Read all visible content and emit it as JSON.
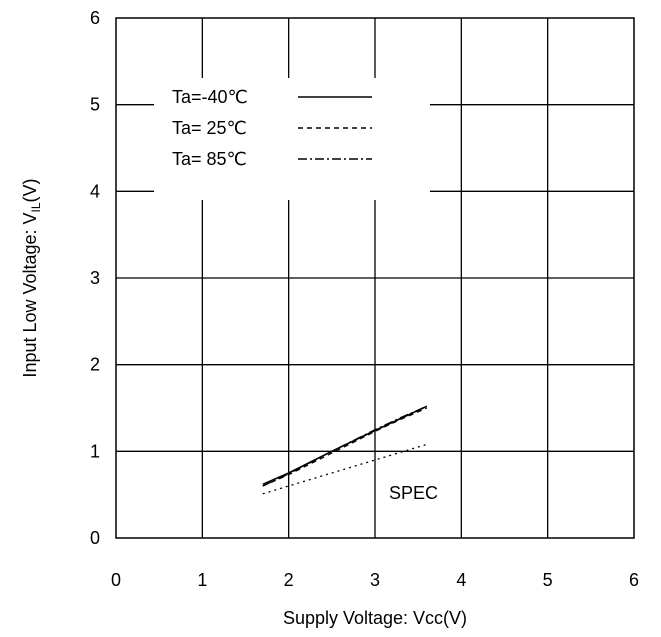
{
  "chart_data": {
    "type": "line",
    "title": "",
    "xlabel": "Supply Voltage: Vcc(V)",
    "ylabel_main": "Input Low Voltage: V",
    "ylabel_sub": "IL",
    "ylabel_unit": "(V)",
    "xlim": [
      0,
      6
    ],
    "ylim": [
      0,
      6
    ],
    "xticks": [
      "0",
      "1",
      "2",
      "3",
      "4",
      "5",
      "6"
    ],
    "yticks": [
      "0",
      "1",
      "2",
      "3",
      "4",
      "5",
      "6"
    ],
    "grid": true,
    "legend_position": "top-left",
    "series": [
      {
        "name": "Ta=-40℃",
        "style": "solid",
        "x": [
          1.7,
          2.0,
          2.5,
          3.0,
          3.3,
          3.6
        ],
        "y": [
          0.62,
          0.75,
          1.0,
          1.24,
          1.38,
          1.52
        ]
      },
      {
        "name": "Ta= 25℃",
        "style": "dashed",
        "x": [
          1.7,
          2.0,
          2.5,
          3.0,
          3.3,
          3.6
        ],
        "y": [
          0.6,
          0.73,
          0.98,
          1.23,
          1.37,
          1.5
        ]
      },
      {
        "name": "Ta= 85℃",
        "style": "dashdot",
        "x": [
          1.7,
          2.0,
          2.5,
          3.0,
          3.3,
          3.6
        ],
        "y": [
          0.6,
          0.74,
          1.0,
          1.25,
          1.39,
          1.52
        ]
      },
      {
        "name": "SPEC",
        "style": "dotted",
        "x": [
          1.7,
          2.0,
          2.5,
          3.0,
          3.3,
          3.6
        ],
        "y": [
          0.51,
          0.6,
          0.75,
          0.9,
          0.99,
          1.08
        ]
      }
    ],
    "annotations": [
      {
        "text": "SPEC",
        "x": 3.4,
        "y": 0.52
      }
    ]
  }
}
